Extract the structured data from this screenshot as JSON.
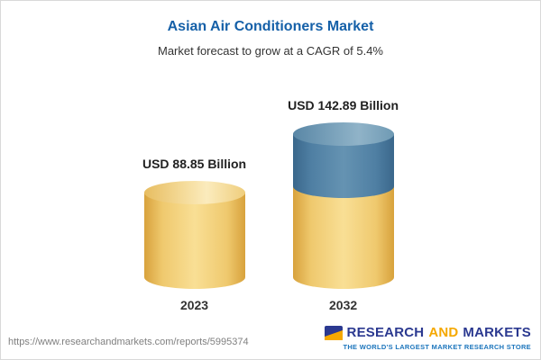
{
  "header": {
    "title": "Asian Air Conditioners Market",
    "subtitle": "Market forecast to grow at a CAGR of 5.4%"
  },
  "chart_data": {
    "type": "bar",
    "bar_style": "3d-cylinder",
    "categories": [
      "2023",
      "2032"
    ],
    "values": [
      88.85,
      142.89
    ],
    "value_labels": [
      "USD 88.85 Billion",
      "USD 142.89 Billion"
    ],
    "title": "Asian Air Conditioners Market",
    "subtitle": "Market forecast to grow at a CAGR of 5.4%",
    "unit": "USD Billion",
    "cagr": "5.4%",
    "ylim": [
      0,
      160
    ],
    "grid": false,
    "legend": "none",
    "colors": {
      "base_value": "#f3d27c",
      "growth_segment": "#5d8cac",
      "title_blue": "#1560a8"
    }
  },
  "footer": {
    "url": "https://www.researchandmarkets.com/reports/5995374",
    "logo": {
      "word1": "RESEARCH",
      "word2": "AND",
      "word3": "MARKETS",
      "tagline": "THE WORLD'S LARGEST MARKET RESEARCH STORE"
    }
  }
}
